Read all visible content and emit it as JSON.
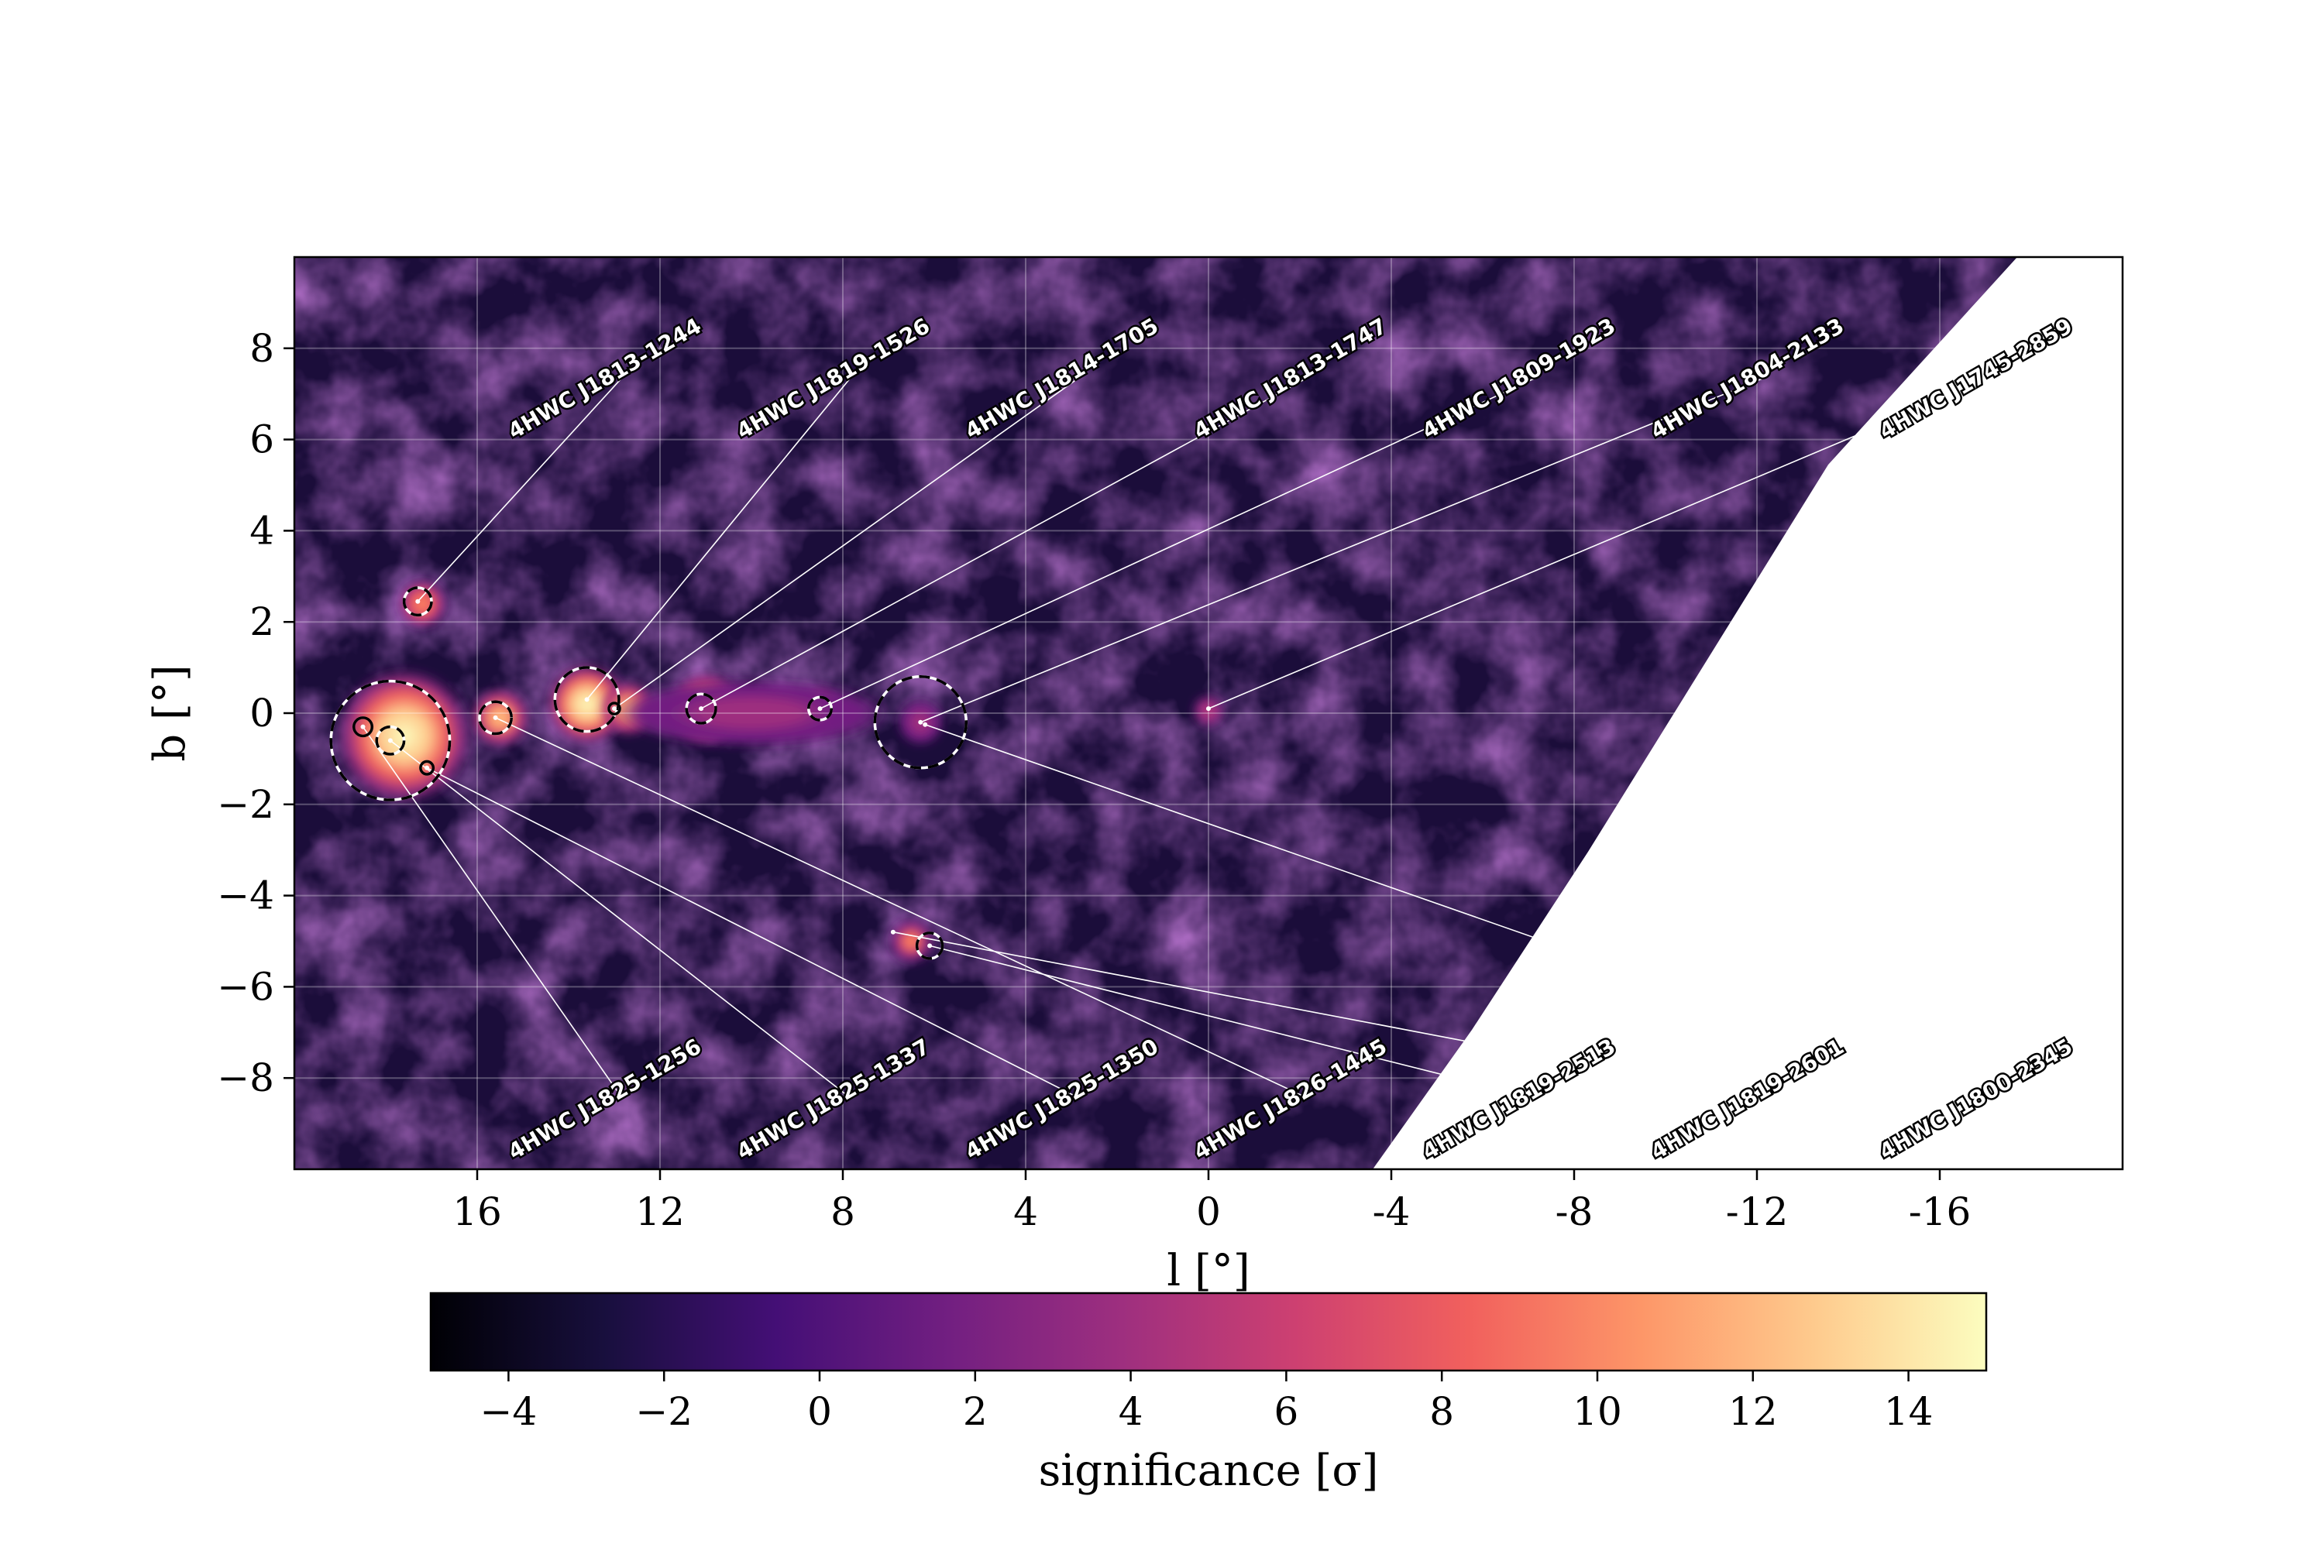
{
  "chart_data": {
    "type": "heatmap",
    "title": "",
    "xlabel": "l [°]",
    "ylabel": "b [°]",
    "xlim": [
      20,
      -20
    ],
    "ylim": [
      -10,
      10
    ],
    "x_ticks": [
      16,
      12,
      8,
      4,
      0,
      -4,
      -8,
      -12,
      -16
    ],
    "x_tick_labels": [
      "16",
      "12",
      "8",
      "4",
      "0",
      "-4",
      "-8",
      "-12",
      "-16"
    ],
    "y_ticks": [
      8,
      6,
      4,
      2,
      0,
      -2,
      -4,
      -6,
      -8
    ],
    "y_tick_labels": [
      "8",
      "6",
      "4",
      "2",
      "0",
      "−2",
      "−4",
      "−6",
      "−8"
    ],
    "grid": true,
    "colorbar": {
      "label": "significance [σ]",
      "range": [
        -5,
        15
      ],
      "ticks": [
        -4,
        -2,
        0,
        2,
        4,
        6,
        8,
        10,
        12,
        14
      ],
      "tick_labels": [
        "−4",
        "−2",
        "0",
        "2",
        "4",
        "6",
        "8",
        "10",
        "12",
        "14"
      ],
      "colormap": "magma",
      "stops": [
        "#000004",
        "#180f3d",
        "#440f76",
        "#721f81",
        "#9e2f7f",
        "#cd4071",
        "#f1605d",
        "#fd9668",
        "#feca8d",
        "#fcfdbf"
      ]
    },
    "emission_blobs": [
      {
        "l": 17.6,
        "b": -0.5,
        "sigma_deg": 1.5,
        "peak": 15
      },
      {
        "l": 17.2,
        "b": 2.4,
        "sigma_deg": 0.55,
        "peak": 11
      },
      {
        "l": 15.5,
        "b": -0.1,
        "sigma_deg": 0.65,
        "peak": 13
      },
      {
        "l": 13.6,
        "b": 0.2,
        "sigma_deg": 0.9,
        "peak": 15
      },
      {
        "l": 12.7,
        "b": 0.1,
        "sigma_deg": 0.6,
        "peak": 12
      },
      {
        "l": 11.0,
        "b": 0.1,
        "sigma_deg": 0.8,
        "peak": 14
      },
      {
        "l": 8.5,
        "b": 0.1,
        "sigma_deg": 0.45,
        "peak": 11
      },
      {
        "l": 6.5,
        "b": -5.0,
        "sigma_deg": 0.5,
        "peak": 10
      },
      {
        "l": 0.0,
        "b": 0.05,
        "sigma_deg": 0.35,
        "peak": 6
      },
      {
        "l": 6.3,
        "b": -0.2,
        "sigma_deg": 0.5,
        "peak": 4
      },
      {
        "l": 10.0,
        "b": 0.0,
        "sigma_deg": 3.0,
        "peak": 4
      }
    ],
    "sources": [
      {
        "name": "4HWC J1813-1244",
        "l": 17.3,
        "b": 2.45,
        "label_l": 15.2,
        "label_b": 6.0,
        "circles": [
          0.3
        ],
        "dashed": true
      },
      {
        "name": "4HWC J1819-1526",
        "l": 13.6,
        "b": 0.3,
        "label_l": 10.2,
        "label_b": 6.0,
        "circles": [
          0.7
        ],
        "dashed": true
      },
      {
        "name": "4HWC J1814-1705",
        "l": 13.0,
        "b": 0.1,
        "label_l": 5.2,
        "label_b": 6.0,
        "circles": [
          0.12
        ],
        "dashed": false
      },
      {
        "name": "4HWC J1813-1747",
        "l": 11.1,
        "b": 0.1,
        "label_l": 0.2,
        "label_b": 6.0,
        "circles": [
          0.32
        ],
        "dashed": true
      },
      {
        "name": "4HWC J1809-1923",
        "l": 8.5,
        "b": 0.1,
        "label_l": -4.8,
        "label_b": 6.0,
        "circles": [
          0.25
        ],
        "dashed": true
      },
      {
        "name": "4HWC J1804-2133",
        "l": 6.3,
        "b": -0.2,
        "label_l": -9.8,
        "label_b": 6.0,
        "circles": [
          1.0
        ],
        "dashed": true
      },
      {
        "name": "4HWC J1745-2859",
        "l": 0.0,
        "b": 0.1,
        "label_l": -14.8,
        "label_b": 6.0,
        "circles": [],
        "dashed": false
      },
      {
        "name": "4HWC J1825-1256",
        "l": 18.5,
        "b": -0.3,
        "label_l": 15.2,
        "label_b": -9.8,
        "circles": [
          0.2
        ],
        "dashed": false
      },
      {
        "name": "4HWC J1825-1337",
        "l": 17.9,
        "b": -0.6,
        "label_l": 10.2,
        "label_b": -9.8,
        "circles": [
          0.3,
          1.3
        ],
        "dashed": true
      },
      {
        "name": "4HWC J1825-1350",
        "l": 17.1,
        "b": -1.2,
        "label_l": 5.2,
        "label_b": -9.8,
        "circles": [
          0.14
        ],
        "dashed": false
      },
      {
        "name": "4HWC J1826-1445",
        "l": 15.6,
        "b": -0.1,
        "label_l": 0.2,
        "label_b": -9.8,
        "circles": [
          0.35
        ],
        "dashed": true
      },
      {
        "name": "4HWC J1819-2513",
        "l": 6.1,
        "b": -5.1,
        "label_l": -4.8,
        "label_b": -9.8,
        "circles": [
          0.28
        ],
        "dashed": true
      },
      {
        "name": "4HWC J1819-2601",
        "l": 6.9,
        "b": -4.8,
        "label_l": -9.8,
        "label_b": -9.8,
        "circles": [],
        "dashed": false
      },
      {
        "name": "4HWC J1800-2345",
        "l": 6.2,
        "b": -0.25,
        "label_l": -14.8,
        "label_b": -9.8,
        "circles": [],
        "dashed": false
      }
    ]
  }
}
